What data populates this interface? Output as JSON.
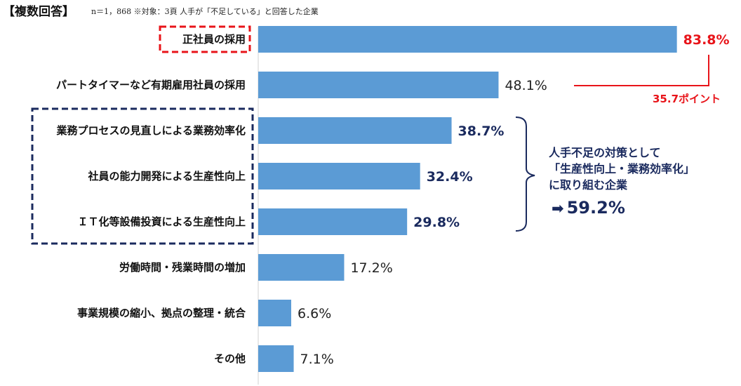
{
  "header": {
    "title": "【複数回答】",
    "note": "n＝1，868 ※対象：3頁 人手が「不足している」と回答した企業"
  },
  "chart_data": {
    "type": "bar",
    "orientation": "horizontal",
    "categories": [
      "正社員の採用",
      "パートタイマーなど有期雇用社員の採用",
      "業務プロセスの見直しによる業務効率化",
      "社員の能力開発による生産性向上",
      "ＩＴ化等設備投資による生産性向上",
      "労働時間・残業時間の増加",
      "事業規模の縮小、拠点の整理・統合",
      "その他"
    ],
    "values": [
      83.8,
      48.1,
      38.7,
      32.4,
      29.8,
      17.2,
      6.6,
      7.1
    ],
    "value_labels": [
      "83.8%",
      "48.1%",
      "38.7%",
      "32.4%",
      "29.8%",
      "17.2%",
      "6.6%",
      "7.1%"
    ],
    "value_styles": [
      "red",
      "plain",
      "bold",
      "bold",
      "bold",
      "plain",
      "plain",
      "plain"
    ],
    "xlim": [
      0,
      100
    ],
    "grid": false,
    "bar_color": "#5b9bd5",
    "accent_red": "#e8141a",
    "accent_navy": "#1a2a5e"
  },
  "annotations": {
    "difference_label": "35.7ポイント",
    "productivity_lines": [
      "人手不足の対策として",
      "「生産性向上・業務効率化」",
      "に取り組む企業"
    ],
    "productivity_arrow": "➡",
    "productivity_total": "59.2%"
  }
}
